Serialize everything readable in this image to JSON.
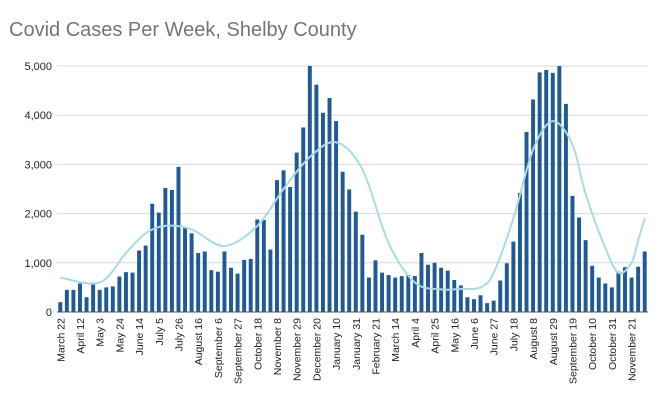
{
  "chart_data": {
    "type": "bar",
    "title": "Covid Cases Per Week, Shelby County",
    "xlabel": "",
    "ylabel": "",
    "ylim": [
      0,
      5000
    ],
    "yticks": [
      0,
      1000,
      2000,
      3000,
      4000,
      5000
    ],
    "ytick_labels": [
      "0",
      "1,000",
      "2,000",
      "3,000",
      "4,000",
      "5,000"
    ],
    "grid": true,
    "bar_color": "#1f5a94",
    "trend_color": "#a8dce2",
    "tick_labels": [
      {
        "label": "March 22",
        "index": 0
      },
      {
        "label": "April 12",
        "index": 3
      },
      {
        "label": "May 3",
        "index": 6
      },
      {
        "label": "May 24",
        "index": 9
      },
      {
        "label": "June 14",
        "index": 12
      },
      {
        "label": "July 5",
        "index": 15
      },
      {
        "label": "July 26",
        "index": 18
      },
      {
        "label": "August 16",
        "index": 21
      },
      {
        "label": "September 6",
        "index": 24
      },
      {
        "label": "September 27",
        "index": 27
      },
      {
        "label": "October 18",
        "index": 30
      },
      {
        "label": "November 8",
        "index": 33
      },
      {
        "label": "November 29",
        "index": 36
      },
      {
        "label": "December 20",
        "index": 39
      },
      {
        "label": "January 10",
        "index": 42
      },
      {
        "label": "January 31",
        "index": 45
      },
      {
        "label": "February 21",
        "index": 48
      },
      {
        "label": "March 14",
        "index": 51
      },
      {
        "label": "April 4",
        "index": 54
      },
      {
        "label": "April 25",
        "index": 57
      },
      {
        "label": "May 16",
        "index": 60
      },
      {
        "label": "June 6",
        "index": 63
      },
      {
        "label": "June 27",
        "index": 66
      },
      {
        "label": "July 18",
        "index": 69
      },
      {
        "label": "August 8",
        "index": 72
      },
      {
        "label": "August 29",
        "index": 75
      },
      {
        "label": "September 19",
        "index": 78
      },
      {
        "label": "October 10",
        "index": 81
      },
      {
        "label": "October 31",
        "index": 84
      },
      {
        "label": "November 21",
        "index": 87
      }
    ],
    "values": [
      200,
      450,
      450,
      580,
      300,
      600,
      450,
      500,
      520,
      720,
      810,
      800,
      1250,
      1350,
      2200,
      2020,
      2520,
      2480,
      2950,
      1720,
      1600,
      1200,
      1230,
      850,
      820,
      1230,
      900,
      780,
      1060,
      1080,
      1880,
      1870,
      1270,
      2680,
      2880,
      2540,
      3240,
      3750,
      5000,
      4620,
      4050,
      4350,
      3880,
      2850,
      2490,
      2040,
      1570,
      700,
      1050,
      800,
      750,
      700,
      730,
      750,
      730,
      1200,
      960,
      1000,
      900,
      840,
      650,
      540,
      300,
      260,
      340,
      180,
      230,
      640,
      990,
      1430,
      2420,
      3660,
      4320,
      4870,
      4920,
      4860,
      5000,
      4230,
      2360,
      1920,
      1460,
      940,
      700,
      580,
      500,
      820,
      910,
      700,
      920,
      1230
    ],
    "trend": [
      [
        0,
        700
      ],
      [
        6,
        600
      ],
      [
        10,
        1200
      ],
      [
        13,
        1600
      ],
      [
        16,
        1750
      ],
      [
        20,
        1680
      ],
      [
        25,
        1340
      ],
      [
        30,
        1750
      ],
      [
        34,
        2500
      ],
      [
        38,
        3150
      ],
      [
        42,
        3450
      ],
      [
        46,
        2900
      ],
      [
        50,
        1400
      ],
      [
        54,
        600
      ],
      [
        58,
        460
      ],
      [
        61,
        470
      ],
      [
        64,
        500
      ],
      [
        66,
        800
      ],
      [
        69,
        1900
      ],
      [
        72,
        3300
      ],
      [
        75,
        3880
      ],
      [
        78,
        3400
      ],
      [
        80,
        2400
      ],
      [
        83,
        1300
      ],
      [
        85,
        800
      ],
      [
        87,
        1000
      ],
      [
        88,
        1450
      ],
      [
        89,
        1900
      ]
    ]
  }
}
